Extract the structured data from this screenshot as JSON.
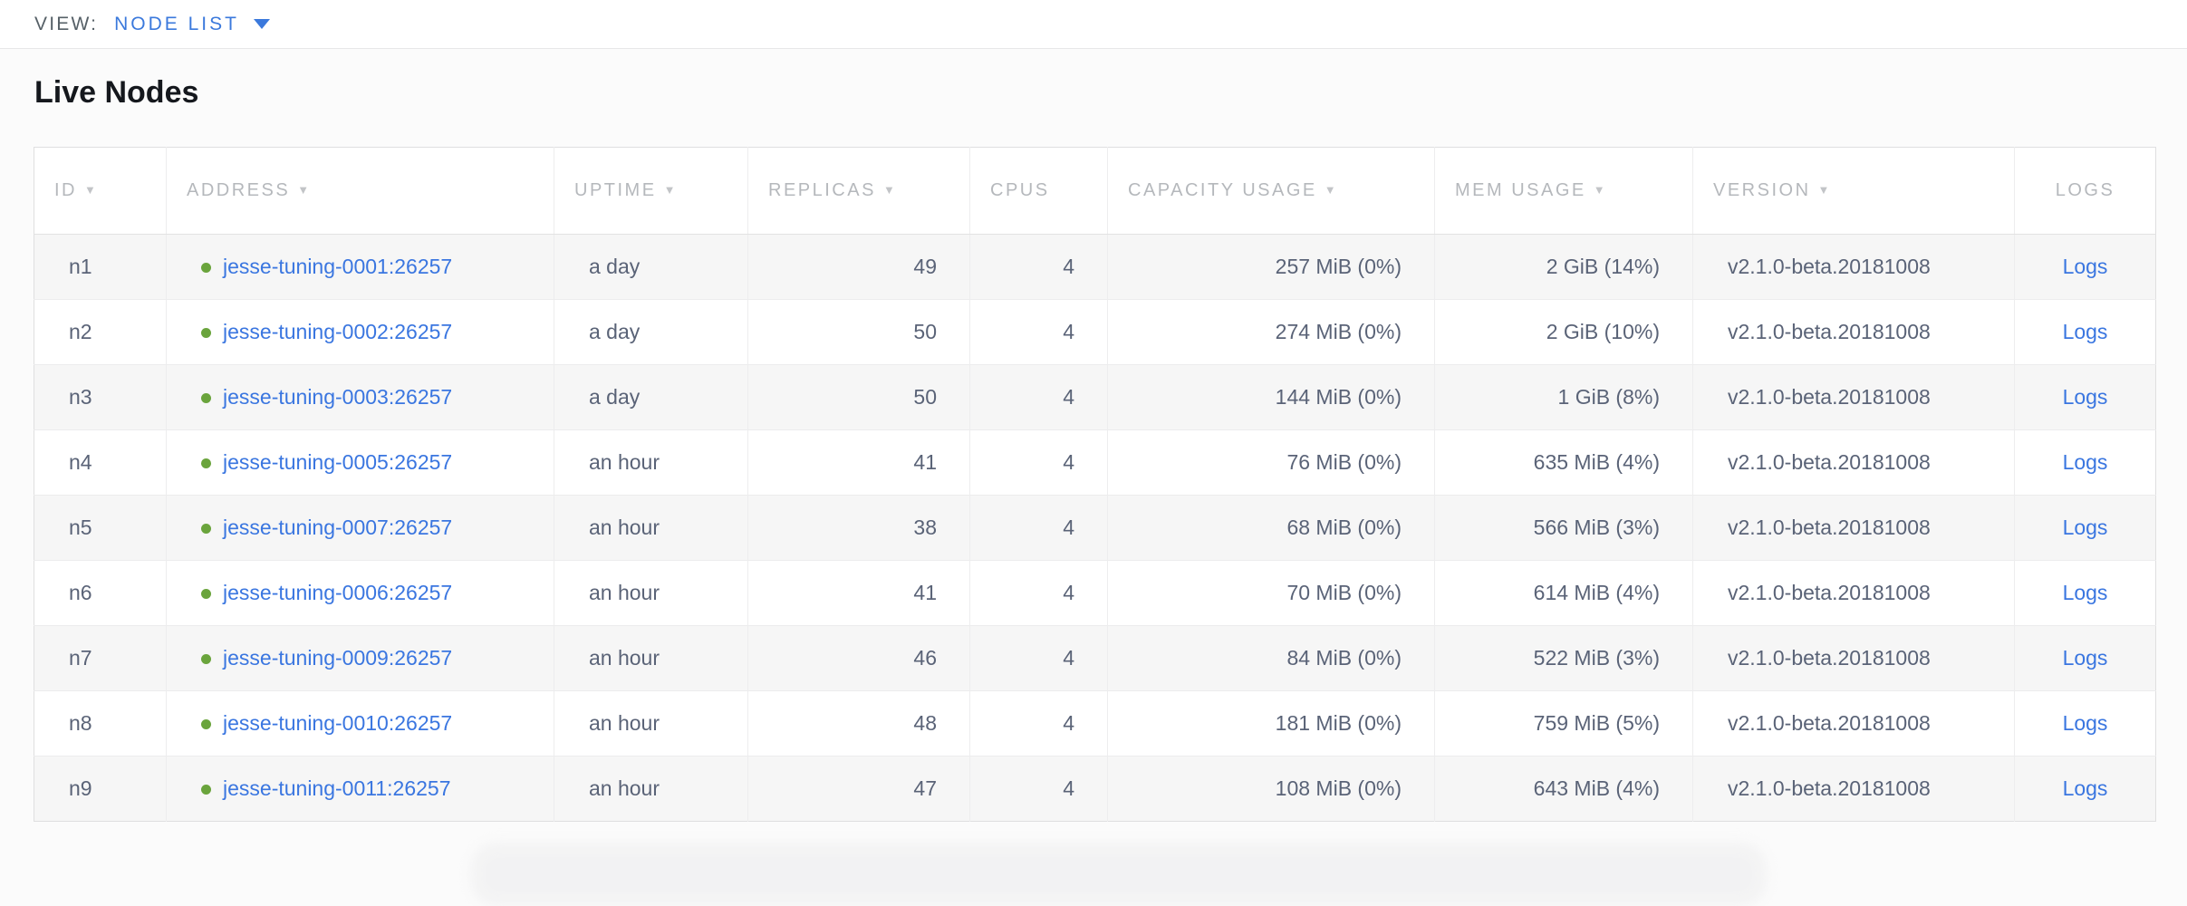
{
  "view_bar": {
    "label": "VIEW:",
    "selected": "NODE LIST"
  },
  "page": {
    "title": "Live Nodes"
  },
  "icons": {
    "sort_indicator": "▼",
    "dropdown_caret": "caret-down"
  },
  "colors": {
    "link_blue": "#3a76e0",
    "accent_blue": "#3b79dc",
    "live_dot_green": "#6aa43c",
    "header_gray": "#b5b8bc",
    "cell_text": "#5a6377",
    "row_alt_bg": "#f6f6f6"
  },
  "table": {
    "columns": [
      {
        "key": "id",
        "label": "ID",
        "sortable": true,
        "align": "left"
      },
      {
        "key": "address",
        "label": "ADDRESS",
        "sortable": true,
        "align": "left"
      },
      {
        "key": "uptime",
        "label": "UPTIME",
        "sortable": true,
        "align": "left"
      },
      {
        "key": "replicas",
        "label": "REPLICAS",
        "sortable": true,
        "align": "right"
      },
      {
        "key": "cpus",
        "label": "CPUS",
        "sortable": false,
        "align": "right"
      },
      {
        "key": "capacity",
        "label": "CAPACITY USAGE",
        "sortable": true,
        "align": "right"
      },
      {
        "key": "mem",
        "label": "MEM USAGE",
        "sortable": true,
        "align": "right"
      },
      {
        "key": "version",
        "label": "VERSION",
        "sortable": true,
        "align": "left"
      },
      {
        "key": "logs",
        "label": "LOGS",
        "sortable": false,
        "align": "center"
      }
    ],
    "rows": [
      {
        "id": "n1",
        "status": "live",
        "address": "jesse-tuning-0001:26257",
        "uptime": "a day",
        "replicas": "49",
        "cpus": "4",
        "capacity": "257 MiB (0%)",
        "mem": "2 GiB (14%)",
        "version": "v2.1.0-beta.20181008",
        "logs": "Logs"
      },
      {
        "id": "n2",
        "status": "live",
        "address": "jesse-tuning-0002:26257",
        "uptime": "a day",
        "replicas": "50",
        "cpus": "4",
        "capacity": "274 MiB (0%)",
        "mem": "2 GiB (10%)",
        "version": "v2.1.0-beta.20181008",
        "logs": "Logs"
      },
      {
        "id": "n3",
        "status": "live",
        "address": "jesse-tuning-0003:26257",
        "uptime": "a day",
        "replicas": "50",
        "cpus": "4",
        "capacity": "144 MiB (0%)",
        "mem": "1 GiB (8%)",
        "version": "v2.1.0-beta.20181008",
        "logs": "Logs"
      },
      {
        "id": "n4",
        "status": "live",
        "address": "jesse-tuning-0005:26257",
        "uptime": "an hour",
        "replicas": "41",
        "cpus": "4",
        "capacity": "76 MiB (0%)",
        "mem": "635 MiB (4%)",
        "version": "v2.1.0-beta.20181008",
        "logs": "Logs"
      },
      {
        "id": "n5",
        "status": "live",
        "address": "jesse-tuning-0007:26257",
        "uptime": "an hour",
        "replicas": "38",
        "cpus": "4",
        "capacity": "68 MiB (0%)",
        "mem": "566 MiB (3%)",
        "version": "v2.1.0-beta.20181008",
        "logs": "Logs"
      },
      {
        "id": "n6",
        "status": "live",
        "address": "jesse-tuning-0006:26257",
        "uptime": "an hour",
        "replicas": "41",
        "cpus": "4",
        "capacity": "70 MiB (0%)",
        "mem": "614 MiB (4%)",
        "version": "v2.1.0-beta.20181008",
        "logs": "Logs"
      },
      {
        "id": "n7",
        "status": "live",
        "address": "jesse-tuning-0009:26257",
        "uptime": "an hour",
        "replicas": "46",
        "cpus": "4",
        "capacity": "84 MiB (0%)",
        "mem": "522 MiB (3%)",
        "version": "v2.1.0-beta.20181008",
        "logs": "Logs"
      },
      {
        "id": "n8",
        "status": "live",
        "address": "jesse-tuning-0010:26257",
        "uptime": "an hour",
        "replicas": "48",
        "cpus": "4",
        "capacity": "181 MiB (0%)",
        "mem": "759 MiB (5%)",
        "version": "v2.1.0-beta.20181008",
        "logs": "Logs"
      },
      {
        "id": "n9",
        "status": "live",
        "address": "jesse-tuning-0011:26257",
        "uptime": "an hour",
        "replicas": "47",
        "cpus": "4",
        "capacity": "108 MiB (0%)",
        "mem": "643 MiB (4%)",
        "version": "v2.1.0-beta.20181008",
        "logs": "Logs"
      }
    ]
  }
}
